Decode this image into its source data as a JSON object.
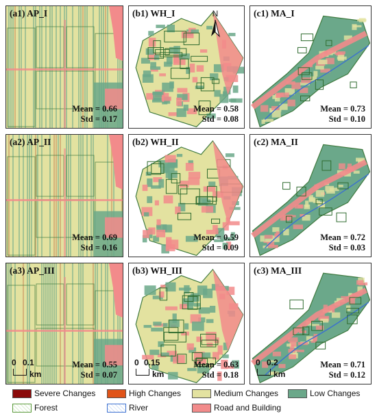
{
  "panels": [
    {
      "id": "a1",
      "title": "(a1) AP_I",
      "mean": "Mean = 0.66",
      "std": "Std = 0.17"
    },
    {
      "id": "b1",
      "title": "(b1) WH_I",
      "mean": "Mean = 0.58",
      "std": "Std = 0.08"
    },
    {
      "id": "c1",
      "title": "(c1) MA_I",
      "mean": "Mean = 0.73",
      "std": "Std = 0.10"
    },
    {
      "id": "a2",
      "title": "(a2) AP_II",
      "mean": "Mean = 0.69",
      "std": "Std = 0.16"
    },
    {
      "id": "b2",
      "title": "(b2) WH_II",
      "mean": "Mean = 0.59",
      "std": "Std = 0.09"
    },
    {
      "id": "c2",
      "title": "(c2) MA_II",
      "mean": "Mean = 0.72",
      "std": "Std = 0.03"
    },
    {
      "id": "a3",
      "title": "(a3) AP_III",
      "mean": "Mean = 0.55",
      "std": "Std = 0.07"
    },
    {
      "id": "b3",
      "title": "(b3) WH_III",
      "mean": "Mean = 0.63",
      "std": "Std = 0.18"
    },
    {
      "id": "c3",
      "title": "(c3) MA_III",
      "mean": "Mean = 0.71",
      "std": "Std = 0.12"
    }
  ],
  "north_arrow": {
    "label": "N"
  },
  "scalebars": [
    {
      "start": "0",
      "end": "0.1",
      "unit": "km"
    },
    {
      "start": "0",
      "end": "0.15",
      "unit": "km"
    },
    {
      "start": "0",
      "end": "0.2",
      "unit": "km"
    }
  ],
  "legend": [
    {
      "label": "Severe Changes",
      "color": "#8b0a0a"
    },
    {
      "label": "High Changes",
      "color": "#e05318"
    },
    {
      "label": "Medium Changes",
      "color": "#e3e2a0"
    },
    {
      "label": "Low Changes",
      "color": "#6ba88a"
    },
    {
      "label": "Forest",
      "color": "#ffffff"
    },
    {
      "label": "River",
      "color": "#ffffff"
    },
    {
      "label": "Road and Building",
      "color": "#f28b8b"
    }
  ]
}
